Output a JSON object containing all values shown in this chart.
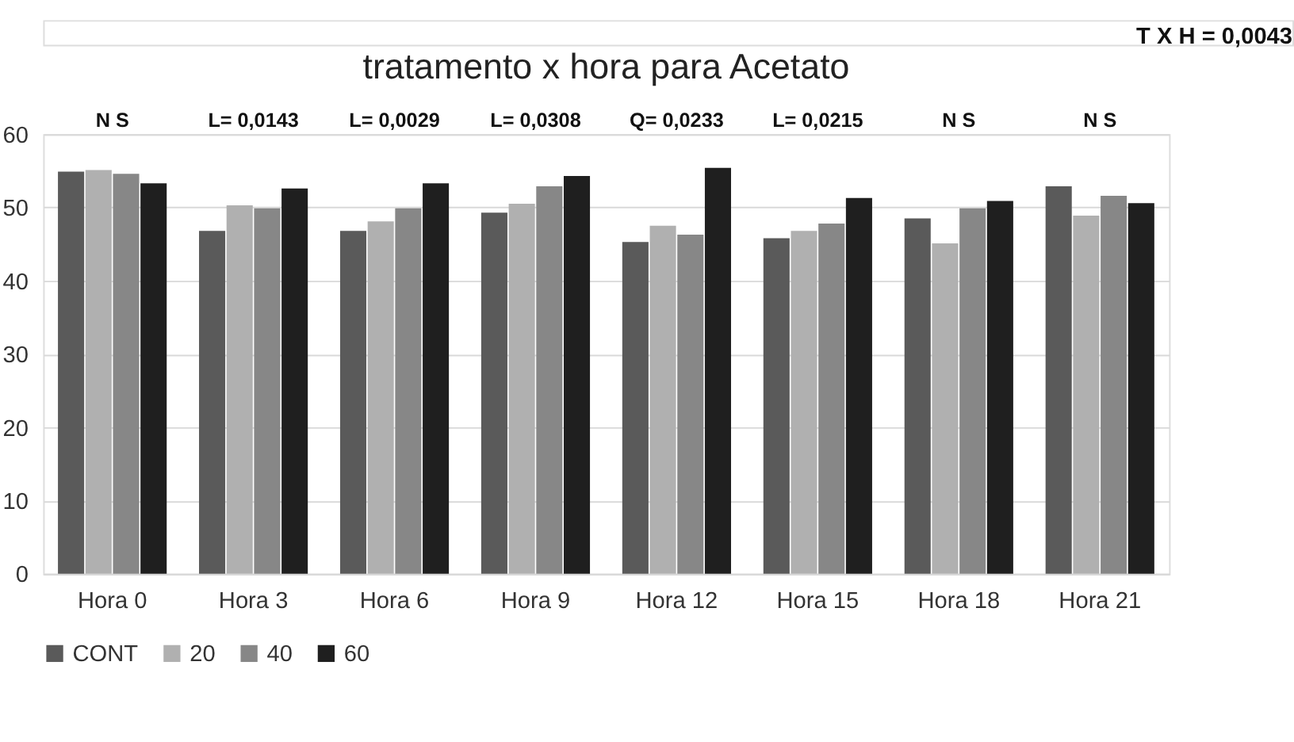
{
  "chart_data": {
    "type": "bar",
    "title": "tratamento x hora para Acetato",
    "categories": [
      "Hora 0",
      "Hora 3",
      "Hora 6",
      "Hora 9",
      "Hora 12",
      "Hora 15",
      "Hora 18",
      "Hora 21"
    ],
    "series": [
      {
        "name": "CONT",
        "color": "#5a5a5a",
        "values": [
          54.9,
          46.8,
          46.8,
          49.3,
          45.3,
          45.8,
          48.5,
          52.9
        ]
      },
      {
        "name": "20",
        "color": "#b0b0b0",
        "values": [
          55.1,
          50.3,
          48.1,
          50.5,
          47.5,
          46.8,
          45.1,
          48.9
        ]
      },
      {
        "name": "40",
        "color": "#878787",
        "values": [
          54.6,
          49.9,
          49.9,
          52.9,
          46.3,
          47.8,
          49.9,
          51.6
        ]
      },
      {
        "name": "60",
        "color": "#1f1f1f",
        "values": [
          53.3,
          52.6,
          53.3,
          54.3,
          55.4,
          51.3,
          50.9,
          50.6
        ]
      }
    ],
    "ylim": [
      0,
      60
    ],
    "yticks": [
      0,
      10,
      20,
      30,
      40,
      50,
      60
    ],
    "grid": "y",
    "legend": "bottom",
    "annotations": [
      "T X H = 0,0043",
      "N S",
      "L= 0,0143",
      "L= 0,0029",
      "L= 0,0308",
      "Q= 0,0233",
      "L= 0,0215",
      "N S",
      "N S"
    ]
  }
}
